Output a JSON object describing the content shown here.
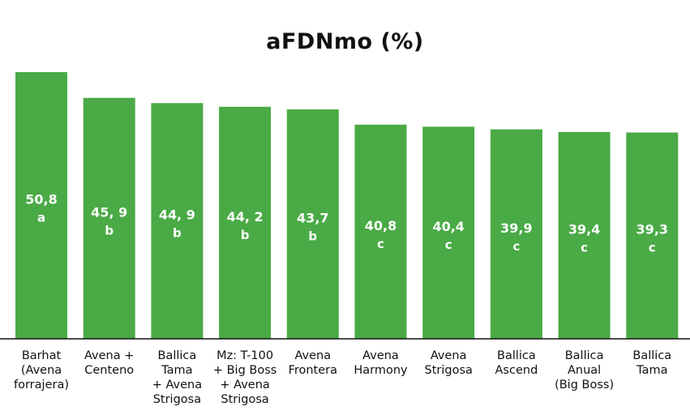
{
  "chart_data": {
    "type": "bar",
    "title": "aFDNmo (%)",
    "xlabel": "",
    "ylabel": "",
    "ylim": [
      0,
      50.8
    ],
    "grid": false,
    "legend": "none",
    "bar_color": "#4aaa46",
    "categories": [
      [
        "Barhat",
        "(Avena",
        "forrajera)"
      ],
      [
        "Avena +",
        "Centeno"
      ],
      [
        "Ballica",
        "Tama",
        "+ Avena",
        "Strigosa"
      ],
      [
        "Mz: T-100",
        "+ Big Boss",
        "+ Avena",
        "Strigosa"
      ],
      [
        "Avena",
        "Frontera"
      ],
      [
        "Avena",
        "Harmony"
      ],
      [
        "Avena",
        "Strigosa"
      ],
      [
        "Ballica",
        "Ascend"
      ],
      [
        "Ballica",
        "Anual",
        "(Big Boss)"
      ],
      [
        "Ballica",
        "Tama"
      ]
    ],
    "values": [
      50.8,
      45.9,
      44.9,
      44.2,
      43.7,
      40.8,
      40.4,
      39.9,
      39.4,
      39.3
    ],
    "value_labels": [
      "50,8",
      "45, 9",
      "44, 9",
      "44, 2",
      "43,7",
      "40,8",
      "40,4",
      "39,9",
      "39,4",
      "39,3"
    ],
    "groups": [
      "a",
      "b",
      "b",
      "b",
      "b",
      "c",
      "c",
      "c",
      "c",
      "c"
    ]
  }
}
